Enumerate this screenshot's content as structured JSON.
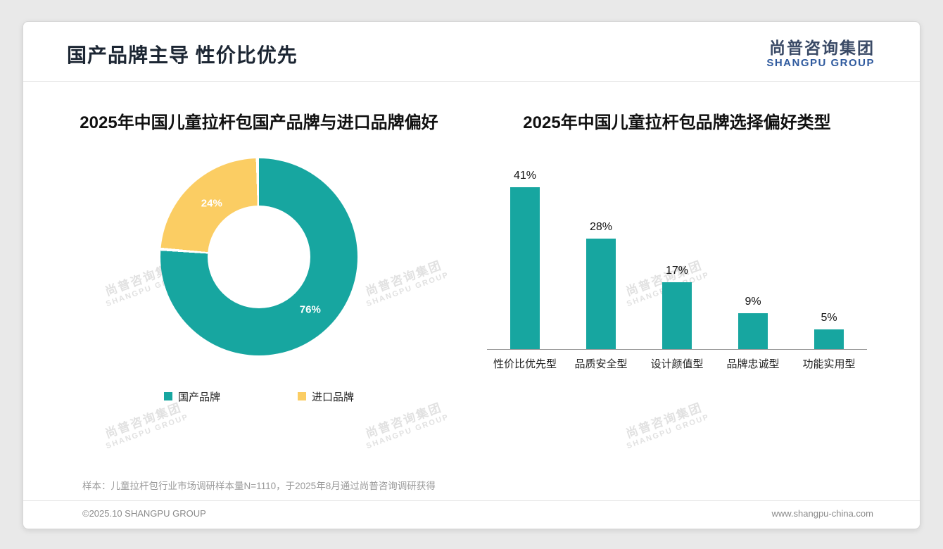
{
  "page": {
    "title": "国产品牌主导 性价比优先",
    "logo": {
      "cn": "尚普咨询集团",
      "en": "SHANGPU GROUP"
    },
    "watermark": {
      "cn": "尚普咨询集团",
      "en": "SHANGPU GROUP"
    },
    "note": "样本：儿童拉杆包行业市场调研样本量N=1110，于2025年8月通过尚普咨询调研获得",
    "footer": {
      "left": "©2025.10 SHANGPU GROUP",
      "right": "www.shangpu-china.com"
    }
  },
  "colors": {
    "teal": "#17a6a0",
    "yellow": "#fbcd63"
  },
  "chart_data": [
    {
      "type": "pie",
      "donut": true,
      "title": "2025年中国儿童拉杆包国产品牌与进口品牌偏好",
      "labels": [
        "国产品牌",
        "进口品牌"
      ],
      "values": [
        76,
        24
      ],
      "value_labels": [
        "76%",
        "24%"
      ],
      "colors": [
        "#17a6a0",
        "#fbcd63"
      ],
      "legend_position": "bottom",
      "start_angle_deg": 0,
      "direction": "clockwise"
    },
    {
      "type": "bar",
      "title": "2025年中国儿童拉杆包品牌选择偏好类型",
      "categories": [
        "性价比优先型",
        "品质安全型",
        "设计颜值型",
        "品牌忠诚型",
        "功能实用型"
      ],
      "values": [
        41,
        28,
        17,
        9,
        5
      ],
      "value_labels": [
        "41%",
        "28%",
        "17%",
        "9%",
        "5%"
      ],
      "bar_color": "#17a6a0",
      "xlabel": "",
      "ylabel": "",
      "ylim": [
        0,
        45
      ],
      "grid": false,
      "legend": false
    }
  ]
}
